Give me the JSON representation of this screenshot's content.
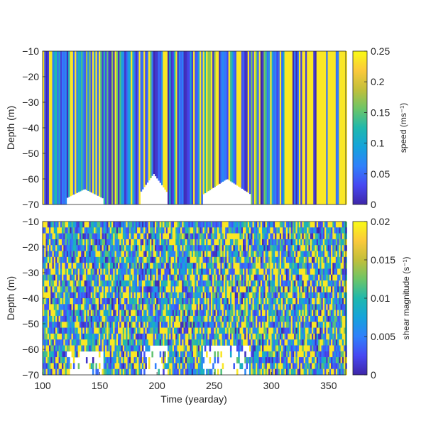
{
  "chart_data": [
    {
      "type": "heatmap",
      "ylabel": "Depth (m)",
      "xlabel": "",
      "xlim": [
        100,
        365
      ],
      "ylim": [
        -70,
        -10
      ],
      "yticks": [
        -10,
        -20,
        -30,
        -40,
        -50,
        -60,
        -70
      ],
      "colorbar": {
        "label": "speed (ms⁻¹)",
        "range": [
          0,
          0.25
        ],
        "ticks": [
          "0.25",
          "0.2",
          "0.15",
          "0.1",
          "0.05",
          "0"
        ],
        "tick_values": [
          0.25,
          0.2,
          0.15,
          0.1,
          0.05,
          0
        ]
      },
      "colormap": "parula",
      "no_data_regions": [
        {
          "x_start": 120,
          "x_end": 152,
          "depth_top": -64
        },
        {
          "x_start": 185,
          "x_end": 208,
          "depth_top": -58
        },
        {
          "x_start": 240,
          "x_end": 281,
          "depth_top": -60
        }
      ],
      "trend": "high speeds (yellow) increasingly dominate after yearday ~290"
    },
    {
      "type": "heatmap",
      "ylabel": "Depth (m)",
      "xlabel": "Time (yearday)",
      "xlim": [
        100,
        365
      ],
      "ylim": [
        -70,
        -10
      ],
      "xticks": [
        100,
        150,
        200,
        250,
        300,
        350
      ],
      "yticks": [
        -10,
        -20,
        -30,
        -40,
        -50,
        -60,
        -70
      ],
      "colorbar": {
        "label": "shear magnitude (s⁻¹)",
        "range": [
          0,
          0.02
        ],
        "ticks": [
          "0.02",
          "0.015",
          "0.01",
          "0.005",
          "0"
        ],
        "tick_values": [
          0.02,
          0.015,
          0.01,
          0.005,
          0
        ]
      },
      "colormap": "parula",
      "no_data_regions": [
        {
          "x_start": 120,
          "x_end": 152,
          "depth_top": -60
        },
        {
          "x_start": 185,
          "x_end": 208,
          "depth_top": -58
        },
        {
          "x_start": 240,
          "x_end": 281,
          "depth_top": -58
        }
      ]
    }
  ]
}
